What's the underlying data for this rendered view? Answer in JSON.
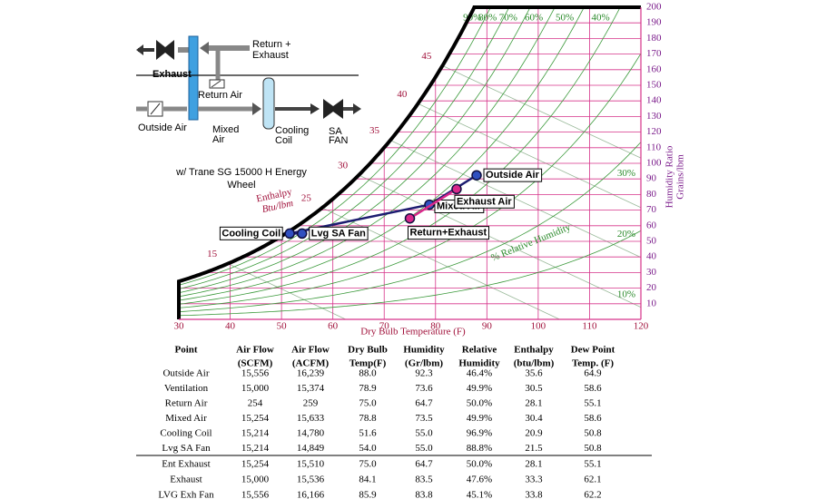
{
  "schematic": {
    "exhaust": "Exhaust",
    "return_exhaust": [
      "Return +",
      "Exhaust"
    ],
    "return_air": "Return Air",
    "outside_air": "Outside Air",
    "mixed_air": [
      "Mixed",
      "Air"
    ],
    "cooling_coil": [
      "Cooling",
      "Coil"
    ],
    "sa_fan": [
      "SA",
      "FAN"
    ]
  },
  "caption": [
    "w/ Trane SG 15000 H Energy",
    "Wheel"
  ],
  "chart_data": {
    "type": "psychrometric",
    "x_label": "Dry Bulb Temperature  (F)",
    "y_label": [
      "Humidity Ratio",
      "Grains/lbm"
    ],
    "xlim": [
      30,
      120
    ],
    "xticks": [
      30,
      40,
      50,
      60,
      70,
      80,
      90,
      100,
      110,
      120
    ],
    "ylim": [
      0,
      200
    ],
    "yticks": [
      10,
      20,
      30,
      40,
      50,
      60,
      70,
      80,
      90,
      100,
      110,
      120,
      130,
      140,
      150,
      160,
      170,
      180,
      190,
      200
    ],
    "grid": true,
    "enthalpy_label": [
      "Enthalpy",
      "Btu/lbm"
    ],
    "enthalpy_lines": [
      15,
      25,
      30,
      35,
      40,
      45
    ],
    "rh_label": "% Relative Humidity",
    "rh_lines": [
      {
        "value": 90,
        "label": "90%"
      },
      {
        "value": 80,
        "label": "80%"
      },
      {
        "value": 70,
        "label": "70%"
      },
      {
        "value": 60,
        "label": "60%"
      },
      {
        "value": 50,
        "label": "50%"
      },
      {
        "value": 40,
        "label": "40%"
      },
      {
        "value": 30,
        "label": "30%"
      },
      {
        "value": 20,
        "label": "20%"
      },
      {
        "value": 10,
        "label": "10%"
      }
    ],
    "series": [
      {
        "color": "#3050c0",
        "labels": [
          "Outside Air",
          "Mixed Air",
          "Cooling Coil",
          "Lvg SA Fan"
        ],
        "x": [
          88.0,
          78.8,
          51.6,
          54.0
        ],
        "values": [
          92.3,
          73.5,
          55.0,
          55.0
        ]
      },
      {
        "color": "#d8288a",
        "labels": [
          "Exhaust Air",
          "Return+Exhaust"
        ],
        "x": [
          84.1,
          75.0
        ],
        "values": [
          83.5,
          64.7
        ]
      }
    ]
  },
  "table": {
    "header": [
      [
        "Point"
      ],
      [
        "Air Flow",
        "(SCFM)"
      ],
      [
        "Air Flow",
        "(ACFM)"
      ],
      [
        "Dry Bulb",
        "Temp(F)"
      ],
      [
        "Humidity",
        "(Gr/lbm)"
      ],
      [
        "Relative",
        "Humidity"
      ],
      [
        "Enthalpy",
        "(btu/lbm)"
      ],
      [
        "Dew Point",
        "Temp. (F)"
      ]
    ],
    "rows": [
      [
        "Outside Air",
        "15,556",
        "16,239",
        "88.0",
        "92.3",
        "46.4%",
        "35.6",
        "64.9"
      ],
      [
        "Ventilation",
        "15,000",
        "15,374",
        "78.9",
        "73.6",
        "49.9%",
        "30.5",
        "58.6"
      ],
      [
        "Return Air",
        "254",
        "259",
        "75.0",
        "64.7",
        "50.0%",
        "28.1",
        "55.1"
      ],
      [
        "Mixed Air",
        "15,254",
        "15,633",
        "78.8",
        "73.5",
        "49.9%",
        "30.4",
        "58.6"
      ],
      [
        "Cooling Coil",
        "15,214",
        "14,780",
        "51.6",
        "55.0",
        "96.9%",
        "20.9",
        "50.8"
      ],
      [
        "Lvg SA Fan",
        "15,214",
        "14,849",
        "54.0",
        "55.0",
        "88.8%",
        "21.5",
        "50.8"
      ]
    ],
    "rows_after_rule": [
      [
        "Ent Exhaust",
        "15,254",
        "15,510",
        "75.0",
        "64.7",
        "50.0%",
        "28.1",
        "55.1"
      ],
      [
        "Exhaust",
        "15,000",
        "15,536",
        "84.1",
        "83.5",
        "47.6%",
        "33.3",
        "62.1"
      ],
      [
        "LVG Exh Fan",
        "15,556",
        "16,166",
        "85.9",
        "83.8",
        "45.1%",
        "33.8",
        "62.2"
      ]
    ]
  }
}
